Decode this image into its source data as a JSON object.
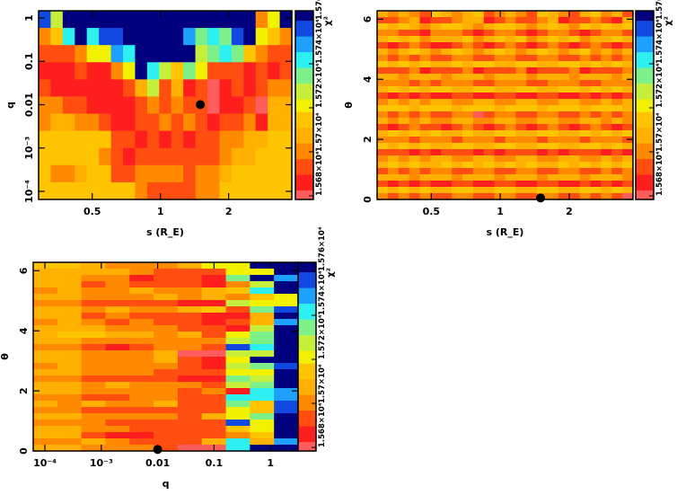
{
  "palette": {
    "0": "#ff5c5c",
    "1": "#ff1e1e",
    "2": "#ff4e10",
    "3": "#ff8a00",
    "4": "#ffb000",
    "5": "#ffc400",
    "6": "#f2f200",
    "7": "#c6ef3c",
    "8": "#7ef08a",
    "9": "#2ef0f0",
    "a": "#1ea0ff",
    "b": "#1048e0",
    "c": "#00007e"
  },
  "level_note": "cell strings use levels 0 (lowest chi2) to c (highest chi2)",
  "colorbar": {
    "label": "χ²",
    "tick_labels": [
      "1.568×10⁴",
      "1.57×10⁴",
      "1.572×10⁴",
      "1.574×10⁴",
      "1.576×10⁴"
    ]
  },
  "chart_data": [
    {
      "type": "heatmap",
      "xlabel": "s (R_E)",
      "ylabel": "q",
      "xscale": "log",
      "yscale": "log",
      "xlim": [
        0.29,
        3.8
      ],
      "ylim": [
        6.5e-05,
        1.47
      ],
      "xticks": [
        {
          "v": 0.5,
          "label": "0.5"
        },
        {
          "v": 1,
          "label": "1"
        },
        {
          "v": 2,
          "label": "2"
        }
      ],
      "yticks": [
        {
          "v": 1,
          "label": "1"
        },
        {
          "v": 0.1,
          "label": "0.1"
        },
        {
          "v": 0.01,
          "label": "0.01"
        },
        {
          "v": 0.001,
          "label": "10⁻³"
        },
        {
          "v": 0.0001,
          "label": "10⁻⁴"
        }
      ],
      "best_fit": {
        "x": 1.5,
        "y": 0.01
      },
      "rows_top_to_bottom": [
        "b7cccccccccccccccc36c",
        "359c9bbccccca898bc653",
        "222366a9ccccc78985322",
        "11121136c975862221212",
        "211111124724120121233",
        "332211112323220112044",
        "344332112232321223144",
        "555555221212122334455",
        "555553212222222344555",
        "533455223333233455555",
        "555555553222233555555"
      ]
    },
    {
      "type": "heatmap",
      "xlabel": "s (R_E)",
      "ylabel": "θ",
      "xscale": "log",
      "yscale": "linear",
      "xlim": [
        0.29,
        3.8
      ],
      "ylim": [
        0,
        6.28
      ],
      "xticks": [
        {
          "v": 0.5,
          "label": "0.5"
        },
        {
          "v": 1,
          "label": "1"
        },
        {
          "v": 2,
          "label": "2"
        }
      ],
      "yticks": [
        {
          "v": 0,
          "label": "0"
        },
        {
          "v": 2,
          "label": "2"
        },
        {
          "v": 4,
          "label": "4"
        },
        {
          "v": 6,
          "label": "6"
        }
      ],
      "best_fit": {
        "x": 1.5,
        "y": 0.05
      },
      "rows_top_to_bottom": [
        "434325434523432543245342",
        "223412234412322341223214",
        "545434554345543454354545",
        "332213332123321233212332",
        "454534445345453454534454",
        "212321123212321232123212",
        "434543454345434543453434",
        "323232233223322332232323",
        "545454454554455445545454",
        "222312223122231222312223",
        "443444344434443444344434",
        "333232333223332233322333",
        "454545544554455445545454",
        "212121122112211221121212",
        "343434433443344334433434",
        "555455545554555455545554",
        "323232233023322332232323",
        "434343344334433443344343",
        "212322123212321232123212",
        "454545445445544554454545",
        "333233323332333233323332",
        "545454455445544554455454",
        "222121222121222121222121",
        "343434433443344334433434",
        "454544545454545445454545",
        "232323322332233223322323",
        "444344434443444344434443",
        "212121122112211221121212",
        "545454455445544554455454",
        "323232233223322332232320"
      ]
    },
    {
      "type": "heatmap",
      "xlabel": "q",
      "ylabel": "θ",
      "xscale": "log",
      "yscale": "linear",
      "xlim": [
        6.2e-05,
        3.1
      ],
      "ylim": [
        0,
        6.28
      ],
      "xticks": [
        {
          "v": 0.0001,
          "label": "10⁻⁴"
        },
        {
          "v": 0.001,
          "label": "10⁻³"
        },
        {
          "v": 0.01,
          "label": "0.01"
        },
        {
          "v": 0.1,
          "label": "0.1"
        },
        {
          "v": 1,
          "label": "1"
        }
      ],
      "yticks": [
        {
          "v": 0,
          "label": "0"
        },
        {
          "v": 2,
          "label": "2"
        },
        {
          "v": 4,
          "label": "4"
        },
        {
          "v": 6,
          "label": "6"
        }
      ],
      "best_fit": {
        "x": 0.01,
        "y": 0.05
      },
      "rows_top_to_bottom": [
        "554333466cc",
        "4444322266c",
        "443312218ca",
        "4423222137c",
        "3433433459c",
        "44333434356",
        "33222211766",
        "4434334528b",
        "4423222114c",
        "3432322124a",
        "4443332217c",
        "4554434268c",
        "4433333378c",
        "33212332b9c",
        "4433340077c",
        "443334216cc",
        "3433332178b",
        "4433322266c",
        "3322221187c",
        "4434333278c",
        "4433332319a",
        "3322332299a",
        "4343342285b",
        "3322222265b",
        "4433332468c",
        "33322222b6c",
        "4433222256c",
        "4421122235c",
        "3343222494a",
        "443332009cc"
      ]
    }
  ]
}
